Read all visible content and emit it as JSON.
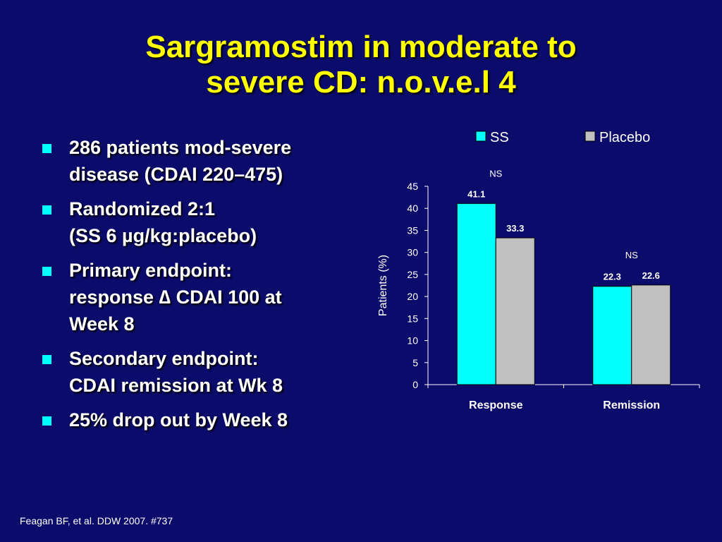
{
  "slide": {
    "title_line1": "Sargramostim in moderate to",
    "title_line2": "severe CD: n.o.v.e.l 4",
    "bullets": [
      "286 patients mod-severe\ndisease (CDAI 220–475)",
      "Randomized 2:1\n(SS 6 µg/kg:placebo)",
      "Primary endpoint:\nresponse ∆ CDAI 100 at\nWeek 8",
      "Secondary endpoint:\nCDAI remission at Wk 8",
      "25% drop out by Week 8"
    ],
    "footnote": "Feagan BF, et al. DDW 2007. #737"
  },
  "colors": {
    "background": "#0b0b6b",
    "title": "#ffff00",
    "bullet": "#00ffff",
    "ss": "#00ffff",
    "placebo": "#c0c0c0"
  },
  "chart_data": {
    "type": "bar",
    "categories": [
      "Response",
      "Remission"
    ],
    "series": [
      {
        "name": "SS",
        "values": [
          41.1,
          22.3
        ],
        "color": "#00ffff"
      },
      {
        "name": "Placebo",
        "values": [
          33.3,
          22.6
        ],
        "color": "#c0c0c0"
      }
    ],
    "ylabel": "Patients (%)",
    "ylim": [
      0,
      45
    ],
    "yticks": [
      0,
      5,
      10,
      15,
      20,
      25,
      30,
      35,
      40,
      45
    ],
    "annotations": [
      "NS",
      "NS"
    ],
    "legend_position": "top",
    "grid": false
  }
}
